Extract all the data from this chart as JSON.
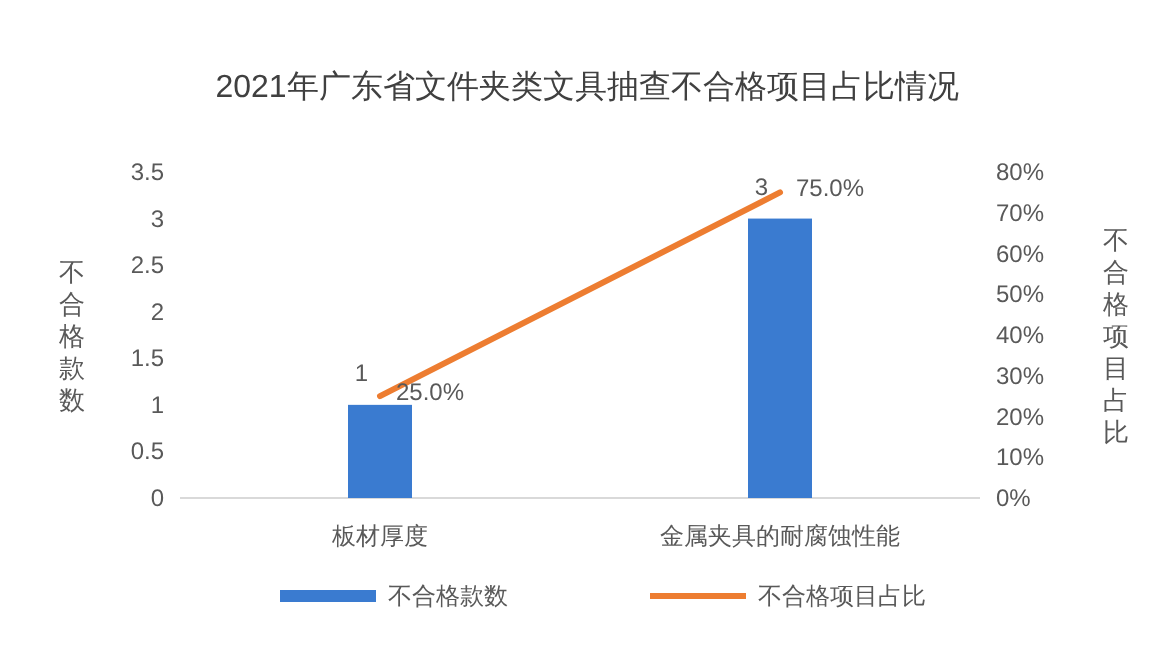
{
  "chart_data": {
    "type": "bar",
    "title": "2021年广东省文件夹类文具抽查不合格项目占比情况",
    "ylabel": "不合格款数",
    "y2label": "不合格项目占比",
    "categories": [
      "板材厚度",
      "金属夹具的耐腐蚀性能"
    ],
    "series": [
      {
        "name": "不合格款数",
        "color": "#3a7bd0",
        "values": [
          1,
          3
        ],
        "value_labels": [
          "1",
          "3"
        ]
      },
      {
        "name": "不合格项目占比",
        "type": "line",
        "axis": "y2",
        "color": "#ed7d31",
        "values": [
          25,
          75
        ],
        "value_labels": [
          "25.0%",
          "75.0%"
        ],
        "marker": "none"
      }
    ],
    "ylim": [
      0,
      3.5
    ],
    "yticks": [
      0,
      0.5,
      1,
      1.5,
      2,
      2.5,
      3,
      3.5
    ],
    "y2lim": [
      0,
      80
    ],
    "y2ticks": [
      {
        "value": 0,
        "label": "0%"
      },
      {
        "value": 10,
        "label": "10%"
      },
      {
        "value": 20,
        "label": "20%"
      },
      {
        "value": 30,
        "label": "30%"
      },
      {
        "value": 40,
        "label": "40%"
      },
      {
        "value": 50,
        "label": "50%"
      },
      {
        "value": 60,
        "label": "60%"
      },
      {
        "value": 70,
        "label": "70%"
      },
      {
        "value": 80,
        "label": "80%"
      }
    ],
    "legend": "bottom",
    "grid": false
  }
}
